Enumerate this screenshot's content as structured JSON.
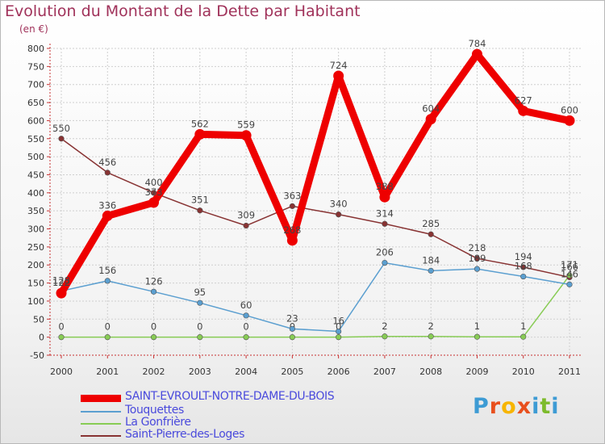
{
  "title": "Evolution du Montant de la Dette par Habitant",
  "unit": "(en €)",
  "logo": "Proxiti",
  "chart_data": {
    "type": "line",
    "title": "Evolution du Montant de la Dette par Habitant",
    "ylabel": "(en €)",
    "xlabel": "",
    "ylim": [
      -50,
      800
    ],
    "ytick_step": 50,
    "grid": true,
    "x": [
      "2000",
      "2001",
      "2002",
      "2003",
      "2004",
      "2005",
      "2006",
      "2007",
      "2008",
      "2009",
      "2010",
      "2011"
    ],
    "series": [
      {
        "name": "SAINT-EVROULT-NOTRE-DAME-DU-BOIS",
        "color": "#ee0000",
        "bold": true,
        "values": [
          122,
          336,
          373,
          562,
          559,
          268,
          724,
          388,
          604,
          784,
          627,
          600
        ]
      },
      {
        "name": "Touquettes",
        "color": "#5b9fd0",
        "values": [
          128,
          156,
          126,
          95,
          60,
          23,
          16,
          206,
          184,
          189,
          168,
          146
        ]
      },
      {
        "name": "La Gonfrière",
        "color": "#88cc55",
        "values": [
          0,
          0,
          0,
          0,
          0,
          0,
          0,
          2,
          2,
          1,
          1,
          171
        ]
      },
      {
        "name": "Saint-Pierre-des-Loges",
        "color": "#883333",
        "values": [
          550,
          456,
          400,
          351,
          309,
          363,
          340,
          314,
          285,
          218,
          194,
          166
        ]
      }
    ]
  }
}
